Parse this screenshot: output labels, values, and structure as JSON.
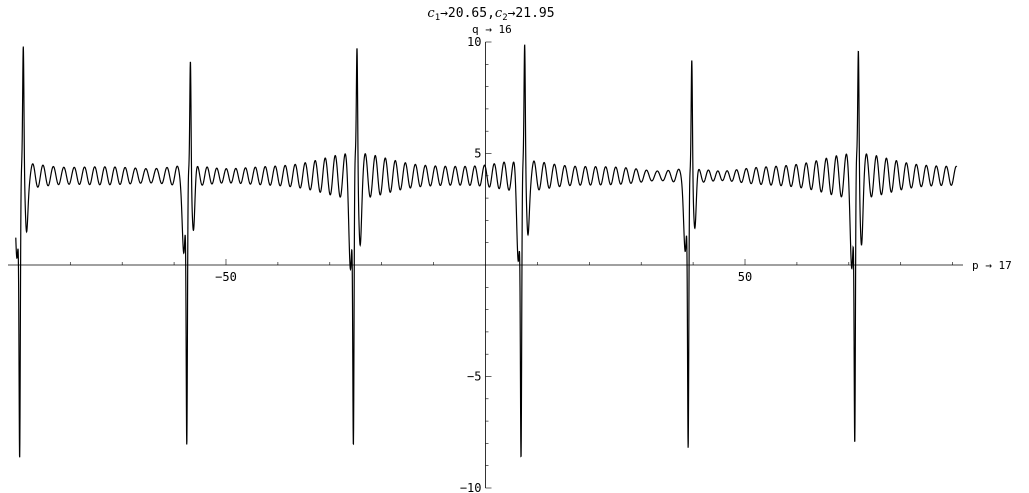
{
  "chart_data": {
    "type": "line",
    "title": {
      "c1_symbol": "c",
      "c1_sub": "1",
      "c1_value": "→20.65,",
      "c2_symbol": "c",
      "c2_sub": "2",
      "c2_value": "→21.95"
    },
    "xlabel": "p → 17",
    "ylabel": "q → 16",
    "xlim": [
      -92,
      92
    ],
    "ylim": [
      -10,
      10
    ],
    "x_ticks": [
      -50,
      50
    ],
    "x_tick_labels": [
      "−50",
      "50"
    ],
    "y_ticks": [
      -10,
      -5,
      5,
      10
    ],
    "y_tick_labels": [
      "−10",
      "−5",
      "5",
      "10"
    ],
    "x_minor_step": 10,
    "y_minor_step": 1,
    "grid": false,
    "series": [
      {
        "line_color": "#000000",
        "baseline": 4.0,
        "ripple_amplitude": 0.42,
        "ripple_period": 1.93,
        "spike_centers": [
          -89.4,
          -57.2,
          -25.1,
          7.2,
          39.4,
          71.5
        ],
        "spike_max": 9.4,
        "spike_min": -7.9
      }
    ]
  }
}
